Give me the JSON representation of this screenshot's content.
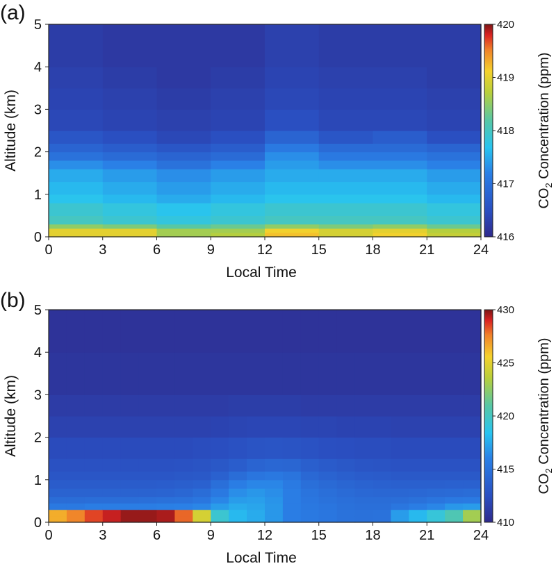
{
  "chart_data": [
    {
      "type": "heatmap",
      "panel_label": "(a)",
      "title": "",
      "xlabel": "Local Time",
      "ylabel": "Altitude (km)",
      "xlim": [
        0,
        24
      ],
      "ylim": [
        0,
        5
      ],
      "xticks": [
        "0",
        "3",
        "6",
        "9",
        "12",
        "15",
        "18",
        "21",
        "24"
      ],
      "yticks": [
        "0",
        "1",
        "2",
        "3",
        "4",
        "5"
      ],
      "colorbar": {
        "label_prefix": "CO",
        "label_sub": "2",
        "label_suffix": " Concentration (ppm)",
        "range": [
          416,
          420
        ],
        "ticks": [
          "416",
          "417",
          "418",
          "419",
          "420"
        ],
        "colormap": "jet"
      },
      "x_bin_edges": [
        0,
        3,
        6,
        9,
        12,
        15,
        18,
        21,
        24
      ],
      "altitude_km": [
        0,
        0.1,
        0.2,
        0.3,
        0.5,
        0.8,
        1.0,
        1.3,
        1.6,
        1.8,
        2.0,
        2.2,
        2.5,
        3.0,
        3.5,
        4.0,
        5.0
      ],
      "values_ppm": [
        [
          419.0,
          419.0,
          418.5,
          418.0,
          417.9,
          417.7,
          417.6,
          417.5,
          417.3,
          417.0,
          416.8,
          416.6,
          416.4,
          416.35,
          416.3,
          416.25,
          416.25
        ],
        [
          419.0,
          419.0,
          418.4,
          417.9,
          417.8,
          417.6,
          417.5,
          417.4,
          417.2,
          416.9,
          416.7,
          416.5,
          416.35,
          416.3,
          416.25,
          416.2,
          416.2
        ],
        [
          418.6,
          418.6,
          418.2,
          417.8,
          417.7,
          417.5,
          417.4,
          417.3,
          417.0,
          416.8,
          416.6,
          416.4,
          416.3,
          416.25,
          416.2,
          416.2,
          416.15
        ],
        [
          418.7,
          418.6,
          418.3,
          417.9,
          417.8,
          417.6,
          417.5,
          417.4,
          417.2,
          416.9,
          416.7,
          416.5,
          416.35,
          416.3,
          416.25,
          416.2,
          416.2
        ],
        [
          419.2,
          419.1,
          418.5,
          418.0,
          417.9,
          417.7,
          417.6,
          417.5,
          417.4,
          417.3,
          417.1,
          416.8,
          416.5,
          416.4,
          416.35,
          416.3,
          416.3
        ],
        [
          418.9,
          418.9,
          418.4,
          418.0,
          417.9,
          417.7,
          417.6,
          417.5,
          417.3,
          417.1,
          416.9,
          416.6,
          416.4,
          416.35,
          416.3,
          416.25,
          416.25
        ],
        [
          419.1,
          419.0,
          418.5,
          418.0,
          417.9,
          417.7,
          417.6,
          417.5,
          417.3,
          417.1,
          416.9,
          416.7,
          416.4,
          416.35,
          416.3,
          416.25,
          416.25
        ],
        [
          418.8,
          418.7,
          418.3,
          417.9,
          417.8,
          417.6,
          417.5,
          417.4,
          417.2,
          417.0,
          416.8,
          416.5,
          416.35,
          416.3,
          416.25,
          416.25,
          416.25
        ]
      ]
    },
    {
      "type": "heatmap",
      "panel_label": "(b)",
      "title": "",
      "xlabel": "Local Time",
      "ylabel": "Altitude (km)",
      "xlim": [
        0,
        24
      ],
      "ylim": [
        0,
        5
      ],
      "xticks": [
        "0",
        "3",
        "6",
        "9",
        "12",
        "15",
        "18",
        "21",
        "24"
      ],
      "yticks": [
        "0",
        "1",
        "2",
        "3",
        "4",
        "5"
      ],
      "colorbar": {
        "label_prefix": "CO",
        "label_sub": "2",
        "label_suffix": " Concentration (ppm)",
        "range": [
          410,
          430
        ],
        "ticks": [
          "410",
          "415",
          "420",
          "425",
          "430"
        ],
        "colormap": "jet"
      },
      "x_bin_edges": [
        0,
        1,
        2,
        3,
        4,
        5,
        6,
        7,
        8,
        9,
        10,
        11,
        12,
        13,
        14,
        15,
        16,
        17,
        18,
        19,
        20,
        21,
        22,
        23,
        24
      ],
      "altitude_km": [
        0,
        0.15,
        0.3,
        0.45,
        0.6,
        0.8,
        1.0,
        1.2,
        1.5,
        2.0,
        2.5,
        3.0,
        4.0,
        5.0
      ],
      "values_ppm": [
        [
          426.5,
          426.5,
          415.5,
          414.6,
          413.9,
          413.4,
          413.0,
          412.6,
          412.2,
          411.6,
          411.2,
          410.8,
          410.6,
          410.5
        ],
        [
          427.5,
          427.5,
          415.5,
          414.6,
          413.9,
          413.4,
          413.0,
          412.6,
          412.2,
          411.6,
          411.2,
          410.8,
          410.6,
          410.5
        ],
        [
          428.5,
          428.5,
          415.8,
          414.7,
          413.9,
          413.4,
          413.0,
          412.6,
          412.2,
          411.6,
          411.2,
          410.8,
          410.6,
          410.5
        ],
        [
          429.2,
          429.2,
          415.8,
          414.7,
          413.9,
          413.4,
          413.0,
          412.6,
          412.2,
          411.6,
          411.2,
          410.8,
          410.6,
          410.5
        ],
        [
          429.7,
          429.7,
          415.8,
          414.7,
          413.9,
          413.4,
          413.0,
          412.6,
          412.2,
          411.6,
          411.2,
          410.8,
          410.6,
          410.5
        ],
        [
          429.7,
          429.7,
          415.8,
          414.8,
          413.9,
          413.4,
          413.0,
          412.6,
          412.2,
          411.6,
          411.2,
          410.8,
          410.6,
          410.5
        ],
        [
          429.5,
          429.5,
          415.9,
          414.9,
          414.0,
          413.5,
          413.0,
          412.6,
          412.2,
          411.6,
          411.2,
          410.8,
          410.6,
          410.5
        ],
        [
          428.0,
          428.0,
          416.0,
          415.0,
          414.2,
          413.6,
          413.1,
          412.7,
          412.2,
          411.6,
          411.2,
          410.8,
          410.6,
          410.5
        ],
        [
          424.5,
          424.5,
          416.2,
          415.3,
          414.6,
          413.8,
          413.2,
          412.8,
          412.3,
          411.6,
          411.2,
          410.8,
          410.6,
          410.5
        ],
        [
          419.5,
          419.5,
          417.0,
          416.2,
          415.5,
          414.8,
          413.8,
          413.1,
          412.4,
          411.7,
          411.2,
          410.8,
          410.6,
          410.5
        ],
        [
          418.0,
          418.0,
          417.5,
          417.0,
          416.5,
          415.8,
          414.6,
          413.5,
          412.6,
          411.8,
          411.3,
          410.8,
          410.6,
          410.5
        ],
        [
          417.5,
          417.5,
          417.3,
          417.1,
          416.8,
          416.2,
          415.2,
          414.0,
          412.8,
          411.9,
          411.3,
          410.8,
          410.6,
          410.5
        ],
        [
          416.8,
          416.8,
          416.8,
          416.7,
          416.5,
          416.2,
          415.4,
          414.2,
          412.9,
          411.9,
          411.3,
          410.8,
          410.6,
          410.5
        ],
        [
          415.8,
          415.8,
          415.8,
          415.8,
          415.8,
          415.6,
          415.1,
          414.1,
          412.8,
          411.9,
          411.3,
          410.8,
          410.6,
          410.5
        ],
        [
          415.5,
          415.5,
          415.4,
          415.3,
          415.1,
          414.8,
          414.3,
          413.6,
          412.7,
          411.8,
          411.2,
          410.8,
          410.6,
          410.5
        ],
        [
          415.3,
          415.3,
          415.2,
          415.0,
          414.8,
          414.4,
          413.9,
          413.3,
          412.5,
          411.8,
          411.2,
          410.8,
          410.6,
          410.5
        ],
        [
          415.0,
          415.0,
          414.9,
          414.8,
          414.5,
          414.1,
          413.6,
          413.1,
          412.4,
          411.7,
          411.2,
          410.8,
          410.6,
          410.5
        ],
        [
          414.9,
          414.9,
          414.8,
          414.6,
          414.3,
          413.9,
          413.4,
          412.9,
          412.3,
          411.7,
          411.2,
          410.8,
          410.6,
          410.5
        ],
        [
          415.0,
          415.0,
          414.8,
          414.6,
          414.2,
          413.8,
          413.3,
          412.8,
          412.3,
          411.7,
          411.2,
          410.8,
          410.6,
          410.5
        ],
        [
          417.0,
          417.0,
          415.3,
          414.7,
          414.2,
          413.7,
          413.2,
          412.7,
          412.2,
          411.6,
          411.2,
          410.8,
          410.6,
          410.5
        ],
        [
          418.0,
          418.0,
          415.8,
          414.9,
          414.3,
          413.7,
          413.2,
          412.7,
          412.2,
          411.6,
          411.2,
          410.8,
          410.6,
          410.5
        ],
        [
          419.2,
          419.2,
          416.2,
          415.2,
          414.4,
          413.7,
          413.2,
          412.7,
          412.2,
          411.6,
          411.2,
          410.8,
          410.6,
          410.5
        ],
        [
          420.5,
          420.5,
          416.8,
          415.5,
          414.5,
          413.8,
          413.2,
          412.7,
          412.2,
          411.6,
          411.2,
          410.8,
          410.6,
          410.5
        ],
        [
          423.0,
          423.0,
          417.0,
          415.6,
          414.6,
          413.8,
          413.2,
          412.7,
          412.2,
          411.6,
          411.2,
          410.8,
          410.6,
          410.5
        ]
      ]
    }
  ]
}
